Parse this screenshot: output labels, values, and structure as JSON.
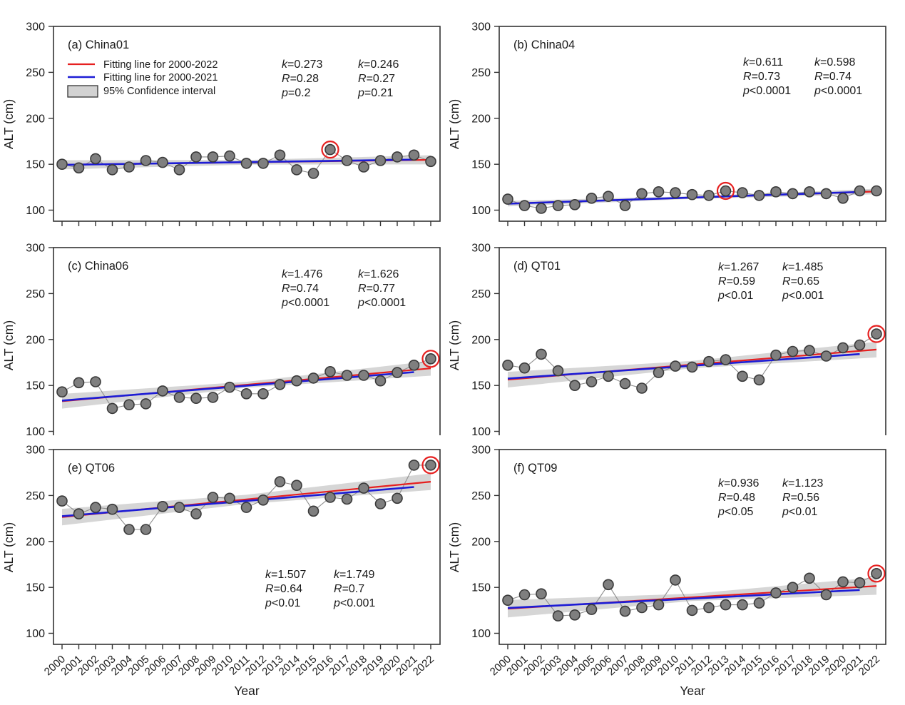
{
  "figure": {
    "x_axis_title": "Year",
    "y_axis_title": "ALT (cm)"
  },
  "legend": {
    "items": [
      {
        "swatch": "line",
        "color": "#e62020",
        "label": "Fitting line for 2000-2022"
      },
      {
        "swatch": "line",
        "color": "#1c1cd6",
        "label": "Fitting line for 2000-2021"
      },
      {
        "swatch": "box",
        "color": "#d2d2d2",
        "label": "95% Confidence interval"
      }
    ]
  },
  "colors": {
    "blue": "#1c1cd6",
    "red": "#e62020",
    "marker_fill": "#7f7f7f",
    "marker_stroke": "#3a3a3a",
    "connector": "#8f8f8f",
    "band": "#d2d2d2",
    "frame": "#333333",
    "text": "#1a1a1a"
  },
  "chart_data": {
    "type": "scatter",
    "x_label": "Year",
    "y_label": "ALT (cm)",
    "categories": [
      2000,
      2001,
      2002,
      2003,
      2004,
      2005,
      2006,
      2007,
      2008,
      2009,
      2010,
      2011,
      2012,
      2013,
      2014,
      2015,
      2016,
      2017,
      2018,
      2019,
      2020,
      2021,
      2022
    ],
    "y_ticks": [
      100,
      150,
      200,
      250,
      300
    ],
    "ylim": [
      88,
      300
    ],
    "grid": false,
    "panels": [
      {
        "title": "(a) China01",
        "values": [
          150,
          146,
          156,
          144,
          147,
          154,
          152,
          144,
          158,
          158,
          159,
          151,
          151,
          160,
          144,
          140,
          166,
          154,
          147,
          154,
          158,
          160,
          153
        ],
        "highlight_year": 2016,
        "fit_2000_2021": {
          "y_start": 149.3,
          "y_end": 155.0
        },
        "fit_2000_2022": {
          "y_start": 149.4,
          "y_end": 154.8
        },
        "band_halfwidth_cm": {
          "mid": 2.5,
          "end": 5.0
        },
        "stats_blue": [
          "k=0.273",
          "R=0.28",
          "p=0.2"
        ],
        "stats_red": [
          "k=0.246",
          "R=0.27",
          "p=0.21"
        ],
        "show_legend": true
      },
      {
        "title": "(b) China04",
        "values": [
          112,
          105,
          102,
          105,
          106,
          113,
          115,
          105,
          118,
          120,
          119,
          117,
          116,
          121,
          119,
          116,
          120,
          118,
          120,
          118,
          113,
          121,
          121
        ],
        "highlight_year": 2013,
        "fit_2000_2021": {
          "y_start": 107.0,
          "y_end": 119.8
        },
        "fit_2000_2022": {
          "y_start": 107.1,
          "y_end": 120.3
        },
        "band_halfwidth_cm": {
          "mid": 1.5,
          "end": 3.0
        },
        "stats_blue": [
          "k=0.611",
          "R=0.73",
          "p<0.0001"
        ],
        "stats_red": [
          "k=0.598",
          "R=0.74",
          "p<0.0001"
        ],
        "show_legend": false
      },
      {
        "title": "(c) China06",
        "values": [
          143,
          153,
          154,
          125,
          129,
          130,
          144,
          137,
          136,
          137,
          148,
          141,
          141,
          151,
          155,
          158,
          165,
          161,
          161,
          155,
          164,
          172,
          179
        ],
        "highlight_year": 2022,
        "fit_2000_2021": {
          "y_start": 133.5,
          "y_end": 164.5
        },
        "fit_2000_2022": {
          "y_start": 132.8,
          "y_end": 168.6
        },
        "band_halfwidth_cm": {
          "mid": 3.2,
          "end": 8.0
        },
        "stats_blue": [
          "k=1.476",
          "R=0.74",
          "p<0.0001"
        ],
        "stats_red": [
          "k=1.626",
          "R=0.77",
          "p<0.0001"
        ],
        "show_legend": false
      },
      {
        "title": "(d) QT01",
        "values": [
          172,
          169,
          184,
          166,
          150,
          154,
          160,
          152,
          147,
          164,
          171,
          170,
          176,
          178,
          160,
          156,
          183,
          187,
          188,
          182,
          191,
          194,
          206
        ],
        "highlight_year": 2022,
        "fit_2000_2021": {
          "y_start": 157.5,
          "y_end": 184.1
        },
        "fit_2000_2022": {
          "y_start": 156.3,
          "y_end": 189.0
        },
        "band_halfwidth_cm": {
          "mid": 4.0,
          "end": 8.5
        },
        "stats_blue": [
          "k=1.267",
          "R=0.59",
          "p<0.01"
        ],
        "stats_red": [
          "k=1.485",
          "R=0.65",
          "p<0.001"
        ],
        "show_legend": false
      },
      {
        "title": "(e) QT06",
        "values": [
          244,
          230,
          237,
          235,
          213,
          213,
          238,
          237,
          230,
          248,
          247,
          237,
          245,
          265,
          261,
          233,
          248,
          246,
          258,
          241,
          247,
          283,
          283
        ],
        "highlight_year": 2022,
        "fit_2000_2021": {
          "y_start": 227.5,
          "y_end": 259.2
        },
        "fit_2000_2022": {
          "y_start": 226.5,
          "y_end": 265.0
        },
        "band_halfwidth_cm": {
          "mid": 5.0,
          "end": 9.0
        },
        "stats_blue": [
          "k=1.507",
          "R=0.64",
          "p<0.01"
        ],
        "stats_red": [
          "k=1.749",
          "R=0.7",
          "p<0.001"
        ],
        "show_legend": false
      },
      {
        "title": "(f) QT09",
        "values": [
          136,
          142,
          143,
          119,
          120,
          126,
          153,
          124,
          128,
          131,
          158,
          125,
          128,
          131,
          131,
          133,
          144,
          150,
          160,
          142,
          156,
          155,
          165
        ],
        "highlight_year": 2022,
        "fit_2000_2021": {
          "y_start": 127.5,
          "y_end": 147.2
        },
        "fit_2000_2022": {
          "y_start": 126.8,
          "y_end": 151.5
        },
        "band_halfwidth_cm": {
          "mid": 4.0,
          "end": 9.5
        },
        "stats_blue": [
          "k=0.936",
          "R=0.48",
          "p<0.05"
        ],
        "stats_red": [
          "k=1.123",
          "R=0.56",
          "p<0.01"
        ],
        "show_legend": false
      }
    ]
  }
}
